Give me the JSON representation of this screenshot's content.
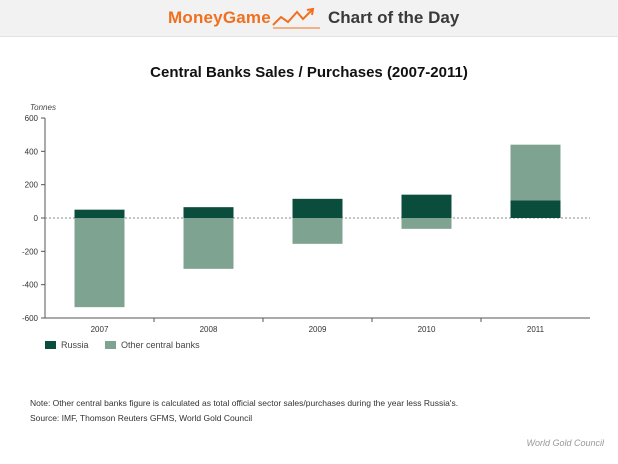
{
  "banner": {
    "brand": "MoneyGame",
    "subtitle": "Chart of the Day"
  },
  "colors": {
    "brand": "#f07020",
    "russia": "#0b4d3c",
    "other": "#7fa391"
  },
  "chart_data": {
    "type": "bar",
    "stacked": true,
    "title": "Central Banks Sales / Purchases (2007-2011)",
    "ylabel": "Tonnes",
    "xlabel": "",
    "categories": [
      "2007",
      "2008",
      "2009",
      "2010",
      "2011"
    ],
    "series": [
      {
        "name": "Russia",
        "values": [
          50,
          65,
          115,
          140,
          105
        ]
      },
      {
        "name": "Other central banks",
        "values": [
          -535,
          -305,
          -155,
          -65,
          335
        ]
      }
    ],
    "ylim": [
      -600,
      600
    ],
    "yticks": [
      "600",
      "400",
      "200",
      "0",
      "-200",
      "-400",
      "-600"
    ],
    "grid": false,
    "legend": "bottom-left"
  },
  "legend": {
    "russia": "Russia",
    "other": "Other central banks"
  },
  "footer": {
    "note": "Note: Other central banks figure is calculated as total official sector sales/purchases during the year less Russia's.",
    "source": "Source: IMF, Thomson Reuters GFMS, World Gold Council",
    "credit": "World Gold Council"
  }
}
